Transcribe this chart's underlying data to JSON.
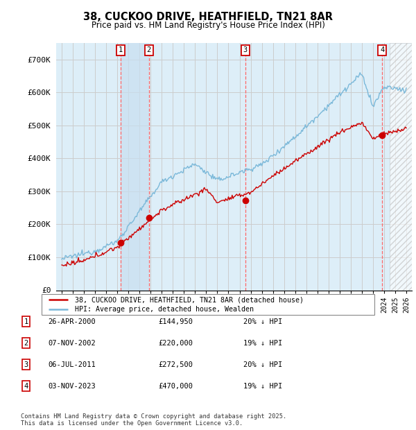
{
  "title": "38, CUCKOO DRIVE, HEATHFIELD, TN21 8AR",
  "subtitle": "Price paid vs. HM Land Registry's House Price Index (HPI)",
  "legend_line1": "38, CUCKOO DRIVE, HEATHFIELD, TN21 8AR (detached house)",
  "legend_line2": "HPI: Average price, detached house, Wealden",
  "footer": "Contains HM Land Registry data © Crown copyright and database right 2025.\nThis data is licensed under the Open Government Licence v3.0.",
  "transactions": [
    {
      "num": 1,
      "date": "26-APR-2000",
      "price": "£144,950",
      "pct": "20% ↓ HPI"
    },
    {
      "num": 2,
      "date": "07-NOV-2002",
      "price": "£220,000",
      "pct": "19% ↓ HPI"
    },
    {
      "num": 3,
      "date": "06-JUL-2011",
      "price": "£272,500",
      "pct": "20% ↓ HPI"
    },
    {
      "num": 4,
      "date": "03-NOV-2023",
      "price": "£470,000",
      "pct": "19% ↓ HPI"
    }
  ],
  "transaction_years": [
    2000.32,
    2002.85,
    2011.51,
    2023.84
  ],
  "transaction_prices": [
    144950,
    220000,
    272500,
    470000
  ],
  "ylim": [
    0,
    750000
  ],
  "yticks": [
    0,
    100000,
    200000,
    300000,
    400000,
    500000,
    600000,
    700000
  ],
  "ytick_labels": [
    "£0",
    "£100K",
    "£200K",
    "£300K",
    "£400K",
    "£500K",
    "£600K",
    "£700K"
  ],
  "xlim_start": 1994.5,
  "xlim_end": 2026.5,
  "hpi_color": "#7ab8d9",
  "price_color": "#cc0000",
  "vline_color": "#ff6666",
  "grid_color": "#cccccc",
  "bg_color": "#ddeef8",
  "plot_bg": "#ffffff",
  "shade_color": "#c8dff0"
}
